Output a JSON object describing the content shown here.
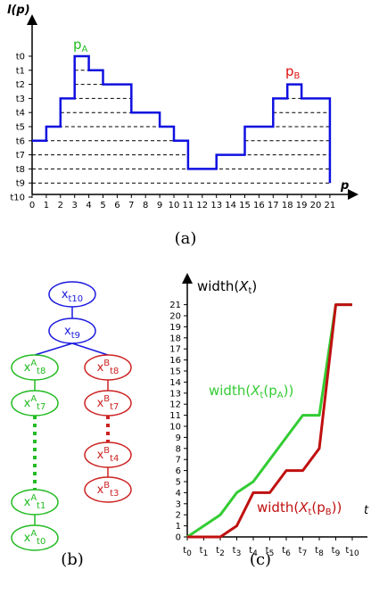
{
  "panel_a": {
    "y_axis_label": "l(p)",
    "x_axis_label": "p",
    "y_ticks": [
      "t0",
      "t1",
      "t2",
      "t3",
      "t4",
      "t5",
      "t6",
      "t7",
      "t8",
      "t9",
      "t10"
    ],
    "x_ticks": [
      "0",
      "1",
      "2",
      "3",
      "4",
      "5",
      "6",
      "7",
      "8",
      "9",
      "10",
      "11",
      "12",
      "13",
      "14",
      "15",
      "16",
      "17",
      "18",
      "19",
      "20",
      "21"
    ],
    "peak_a_label": "pA",
    "peak_b_label": "pB",
    "caption": "(a)",
    "colors": {
      "profile": "#1010e0",
      "peak_a": "#22bb22",
      "peak_b": "#dd1111",
      "levels": "#000000"
    },
    "profile_levels": [
      6,
      5,
      4,
      3,
      1,
      0,
      1,
      2,
      2,
      2,
      3,
      3,
      4,
      5,
      6,
      8,
      8,
      7,
      7,
      6,
      5,
      4,
      4,
      3,
      2,
      2,
      3,
      3
    ]
  },
  "panel_b": {
    "caption": "(b)",
    "colors": {
      "blue": "#1a1adf",
      "green": "#22bb22",
      "red": "#cc2222"
    },
    "nodes": {
      "t10": {
        "base": "x",
        "sup": "",
        "sub": "t10"
      },
      "t9": {
        "base": "x",
        "sup": "",
        "sub": "t9"
      },
      "a8": {
        "base": "x",
        "sup": "A",
        "sub": "t8"
      },
      "a7": {
        "base": "x",
        "sup": "A",
        "sub": "t7"
      },
      "a1": {
        "base": "x",
        "sup": "A",
        "sub": "t1"
      },
      "a0": {
        "base": "x",
        "sup": "A",
        "sub": "t0"
      },
      "b8": {
        "base": "x",
        "sup": "B",
        "sub": "t8"
      },
      "b7": {
        "base": "x",
        "sup": "B",
        "sub": "t7"
      },
      "b4": {
        "base": "x",
        "sup": "B",
        "sub": "t4"
      },
      "b3": {
        "base": "x",
        "sup": "B",
        "sub": "t3"
      }
    }
  },
  "panel_c": {
    "caption": "(c)",
    "y_label": "width(Xt)",
    "green_label": "width(Xt(pA))",
    "red_label": "width(Xt(pB))",
    "x_edge_label": "t",
    "chart_data": {
      "type": "line",
      "x": [
        "t0",
        "t1",
        "t2",
        "t3",
        "t4",
        "t5",
        "t6",
        "t7",
        "t8",
        "t9",
        "t10"
      ],
      "y_ticks": [
        "0",
        "1",
        "2",
        "3",
        "4",
        "5",
        "6",
        "7",
        "8",
        "9",
        "10",
        "11",
        "12",
        "13",
        "14",
        "15",
        "16",
        "17",
        "18",
        "19",
        "20",
        "21"
      ],
      "ylim": [
        0,
        21
      ],
      "series": [
        {
          "name": "width(Xt(pA))",
          "color": "#33cc33",
          "values": [
            0,
            1,
            2,
            4,
            5,
            7,
            9,
            11,
            11,
            21,
            21
          ]
        },
        {
          "name": "width(Xt(pB))",
          "color": "#c01010",
          "values": [
            0,
            0,
            0,
            1,
            4,
            4,
            6,
            6,
            8,
            21,
            21
          ]
        }
      ]
    }
  }
}
